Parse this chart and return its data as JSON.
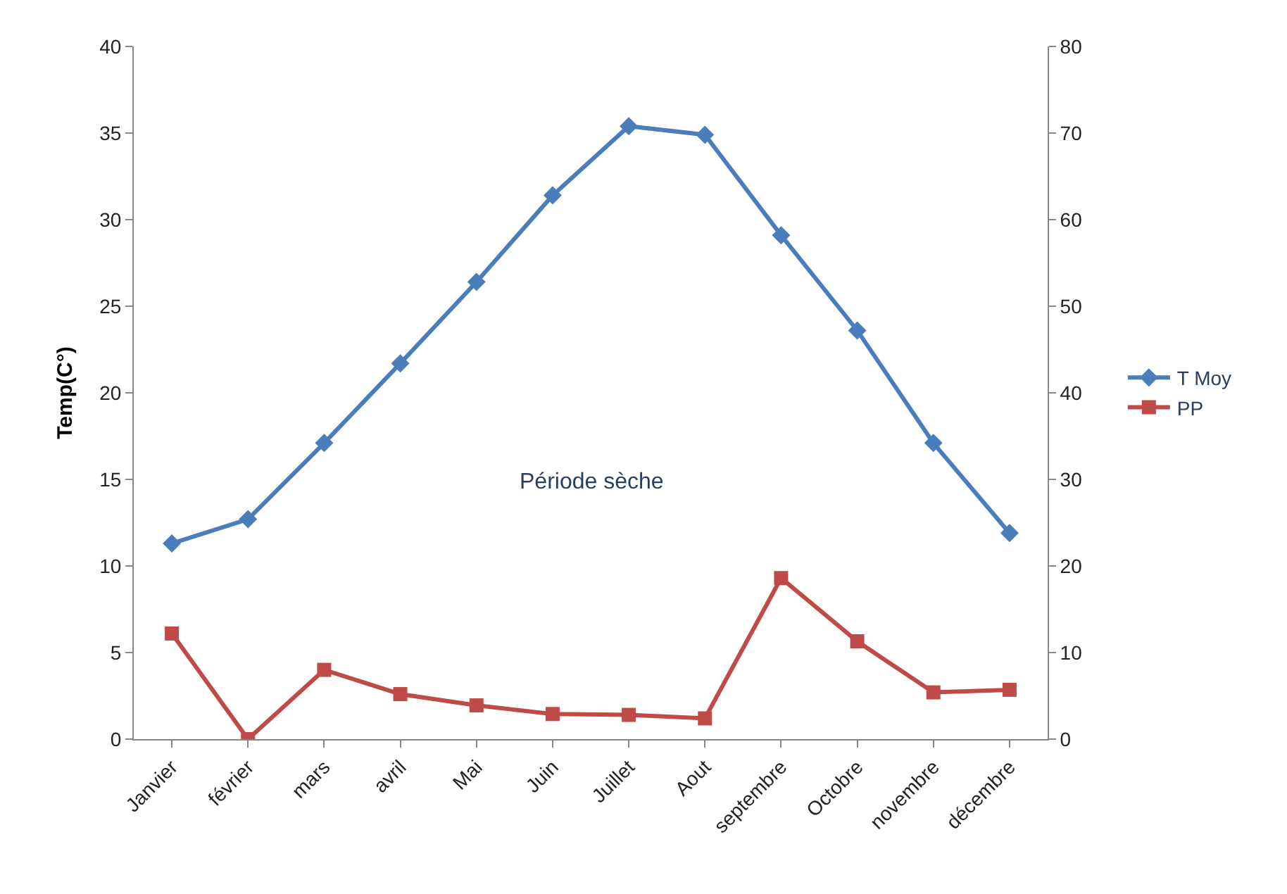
{
  "chart_data": {
    "type": "line",
    "ylabel": "Temp(C°)",
    "categories": [
      "Janvier",
      "février",
      "mars",
      "avril",
      "Mai",
      "Juin",
      "Juillet",
      "Aout",
      "septembre",
      "Octobre",
      "novembre",
      "décembre"
    ],
    "series": [
      {
        "name": "T Moy",
        "color": "#4a7ebb",
        "marker": "diamond",
        "values": [
          11.3,
          12.7,
          17.1,
          21.7,
          26.4,
          31.4,
          35.4,
          34.9,
          29.1,
          23.6,
          17.1,
          11.9
        ]
      },
      {
        "name": "PP",
        "color": "#be4b48",
        "marker": "square",
        "axis": "y2",
        "values": [
          12.2,
          0,
          8.0,
          5.2,
          3.9,
          2.9,
          2.8,
          2.4,
          18.6,
          11.3,
          5.4,
          5.7
        ]
      }
    ],
    "ylim": [
      0,
      40
    ],
    "yticks": [
      0,
      5,
      10,
      15,
      20,
      25,
      30,
      35,
      40
    ],
    "y2lim": [
      0,
      80
    ],
    "y2ticks": [
      0,
      10,
      20,
      30,
      40,
      50,
      60,
      70,
      80
    ],
    "annotations": [
      "Période sèche"
    ],
    "legend": "right",
    "line_style": "solid"
  }
}
